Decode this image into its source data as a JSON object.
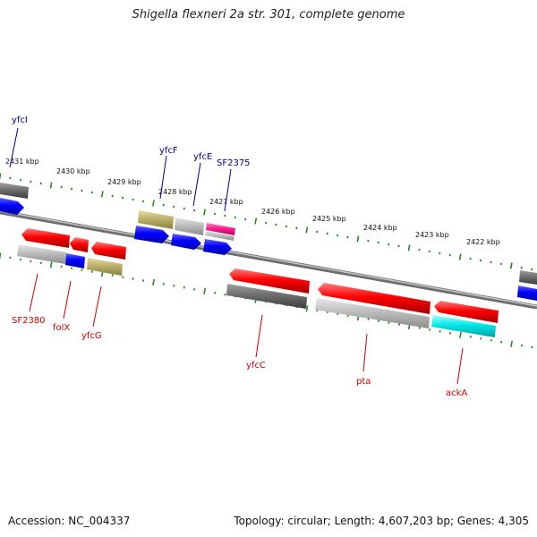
{
  "title": "Shigella flexneri 2a str. 301, complete genome",
  "footer": {
    "accession": "Accession: NC_004337",
    "summary": "Topology: circular; Length: 4,607,203 bp; Genes: 4,305"
  },
  "colors": {
    "plus_strand_label": "#00008b",
    "minus_strand_label": "#cc0000",
    "tick_major": "#228b22",
    "backbone": "#808080"
  },
  "ticks": [
    {
      "label": "2431 kbp"
    },
    {
      "label": "2430 kbp"
    },
    {
      "label": "2429 kbp"
    },
    {
      "label": "2428 kbp"
    },
    {
      "label": "2427 kbp"
    },
    {
      "label": "2426 kbp"
    },
    {
      "label": "2425 kbp"
    },
    {
      "label": "2424 kbp"
    },
    {
      "label": "2423 kbp"
    },
    {
      "label": "2422 kbp"
    }
  ],
  "gene_labels": {
    "yfcI": "yfcI",
    "yfcF": "yfcF",
    "yfcE": "yfcE",
    "SF2375": "SF2375",
    "SF2380": "SF2380",
    "folX": "folX",
    "yfcG": "yfcG",
    "yfcC": "yfcC",
    "pta": "pta",
    "ackA": "ackA"
  }
}
